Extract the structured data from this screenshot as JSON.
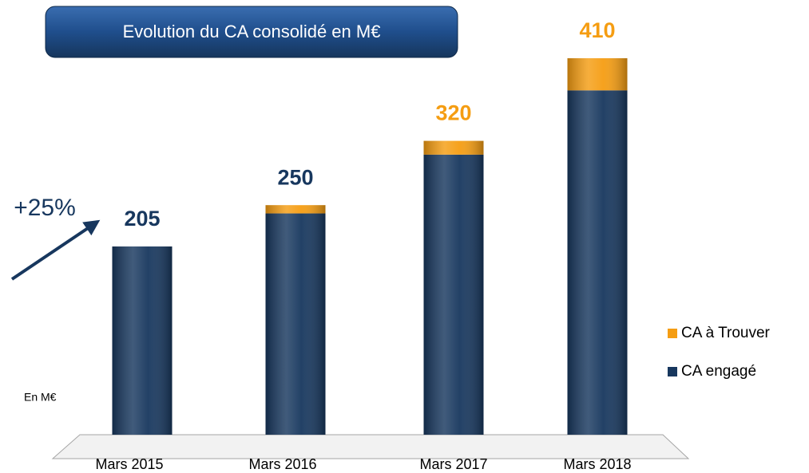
{
  "chart_data": {
    "type": "stacked_bar",
    "title": "Evolution du CA consolidé en M€",
    "annotation": "+25%",
    "unit_note": "En M€",
    "categories": [
      "Mars 2015",
      "Mars 2016",
      "Mars 2017",
      "Mars 2018"
    ],
    "series": [
      {
        "name": "CA engagé",
        "color": "#17375e",
        "values": [
          205,
          241,
          305,
          375
        ]
      },
      {
        "name": "CA à Trouver",
        "color": "#f59d12",
        "values": [
          0,
          9,
          15,
          35
        ]
      }
    ],
    "totals": [
      205,
      250,
      320,
      410
    ],
    "total_label_colors": [
      "#17375e",
      "#17375e",
      "#f59d12",
      "#f59d12"
    ],
    "ylim": [
      0,
      420
    ],
    "legend": "right"
  }
}
